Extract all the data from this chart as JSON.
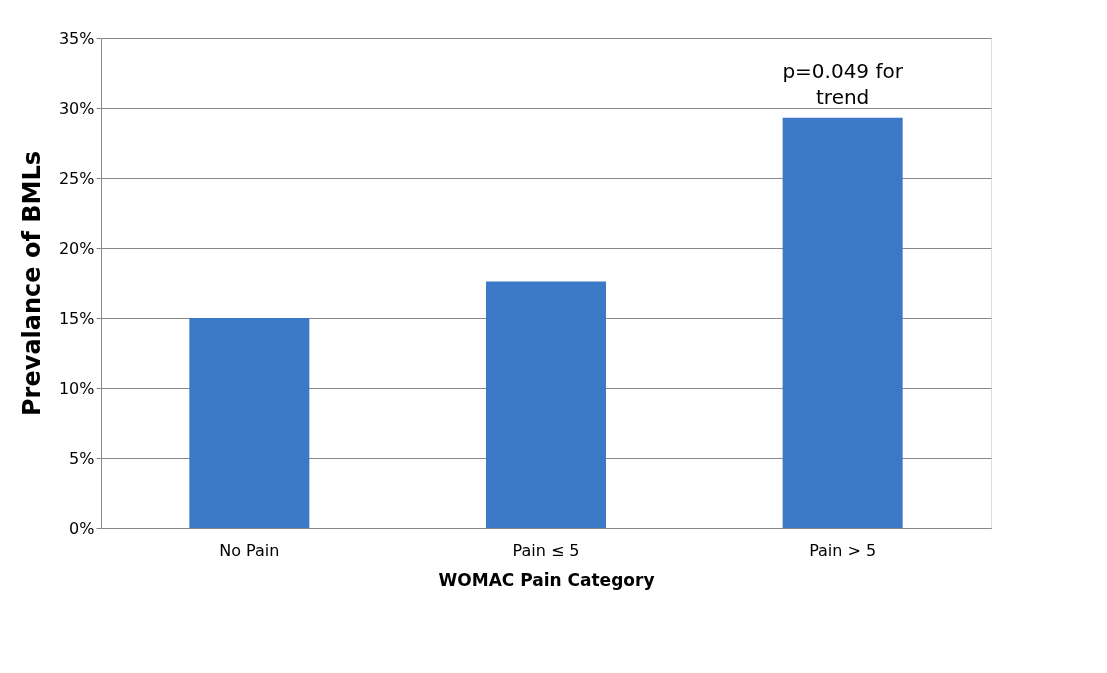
{
  "chart_data": {
    "type": "bar",
    "xlabel": "WOMAC Pain Category",
    "ylabel": "Prevalance of BMLs",
    "categories": [
      "No Pain",
      "Pain ≤ 5",
      "Pain > 5"
    ],
    "values": [
      15.0,
      17.6,
      29.3
    ],
    "color": "#3b78c6",
    "ylim": [
      0,
      35
    ],
    "yticks": [
      {
        "value": 0,
        "label": "0%"
      },
      {
        "value": 5,
        "label": "5%"
      },
      {
        "value": 10,
        "label": "10%"
      },
      {
        "value": 15,
        "label": "15%"
      },
      {
        "value": 20,
        "label": "20%"
      },
      {
        "value": 25,
        "label": "25%"
      },
      {
        "value": 30,
        "label": "30%"
      },
      {
        "value": 35,
        "label": "35%"
      }
    ],
    "grid": "y",
    "annotations": [
      {
        "text": "p=0.049 for\ntrend",
        "x": "Pain > 5",
        "y": 29.3
      }
    ]
  }
}
